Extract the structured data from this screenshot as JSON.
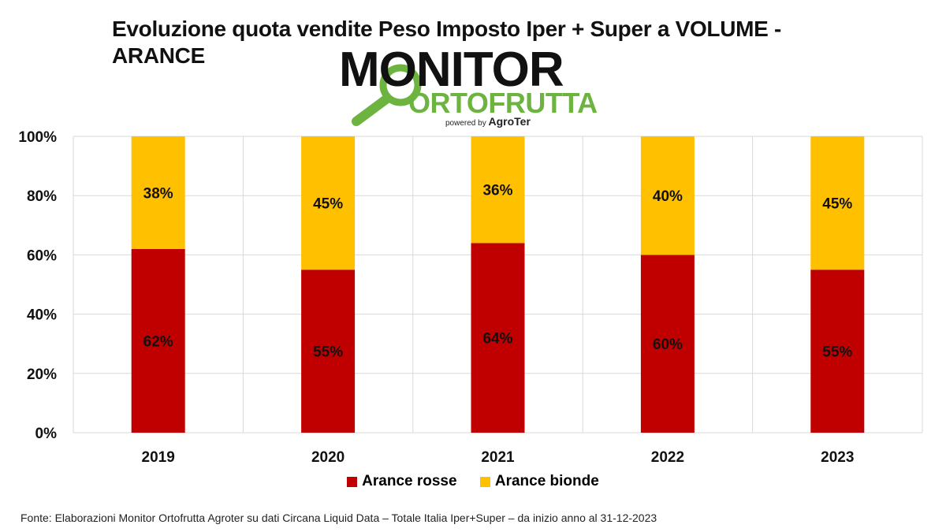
{
  "title": "Evoluzione quota vendite Peso Imposto Iper + Super a VOLUME - ARANCE",
  "logo": {
    "main": "MONITOR",
    "sub": "ORTOFRUTTA",
    "powered_prefix": "powered by",
    "powered_brand": "AgroTer"
  },
  "colors": {
    "rosse": "#c00000",
    "bionde": "#ffc000",
    "grid": "#d9d9d9"
  },
  "chart_data": {
    "type": "bar",
    "stacked": true,
    "categories": [
      "2019",
      "2020",
      "2021",
      "2022",
      "2023"
    ],
    "series": [
      {
        "name": "Arance rosse",
        "values": [
          62,
          55,
          64,
          60,
          55
        ],
        "labels": [
          "62%",
          "55%",
          "64%",
          "60%",
          "55%"
        ]
      },
      {
        "name": "Arance bionde",
        "values": [
          38,
          45,
          36,
          40,
          45
        ],
        "labels": [
          "38%",
          "45%",
          "36%",
          "40%",
          "45%"
        ]
      }
    ],
    "ylim": [
      0,
      100
    ],
    "yticks": [
      "0%",
      "20%",
      "40%",
      "60%",
      "80%",
      "100%"
    ],
    "grid": true,
    "legend": "bottom"
  },
  "legend": {
    "rosse": "Arance rosse",
    "bionde": "Arance bionde"
  },
  "source": "Fonte: Elaborazioni Monitor Ortofrutta Agroter su dati Circana Liquid Data – Totale Italia Iper+Super –  da inizio anno al 31-12-2023"
}
